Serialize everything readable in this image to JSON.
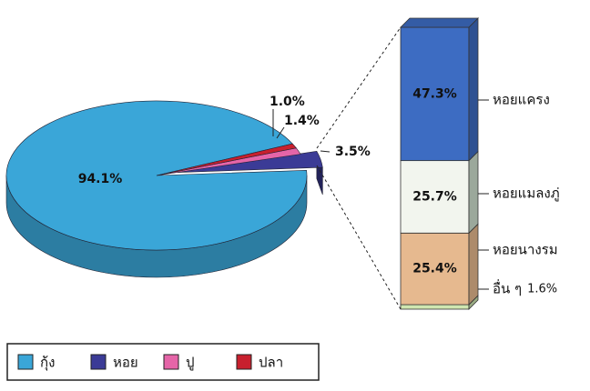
{
  "chart_data": [
    {
      "type": "pie",
      "categories": [
        "กุ้ง",
        "หอย",
        "ปู",
        "ปลา"
      ],
      "values": [
        94.1,
        3.5,
        1.4,
        1.0
      ],
      "value_labels": [
        "94.1%",
        "3.5%",
        "1.4%",
        "1.0%"
      ],
      "colors": [
        "#3aa6d8",
        "#3b3b96",
        "#e565a8",
        "#c8202e"
      ],
      "legend": "bottom-left"
    },
    {
      "type": "bar",
      "stacked": true,
      "categories": [
        "หอยแครง",
        "หอยแมลงภู่",
        "หอยนางรม",
        "อื่น ๆ"
      ],
      "values": [
        47.3,
        25.7,
        25.4,
        1.6
      ],
      "value_labels": [
        "47.3%",
        "25.7%",
        "25.4%",
        "1.6%"
      ],
      "colors": [
        "#3d6cc2",
        "#f2f5ee",
        "#e6b98f",
        "#cfe6b0"
      ]
    }
  ]
}
